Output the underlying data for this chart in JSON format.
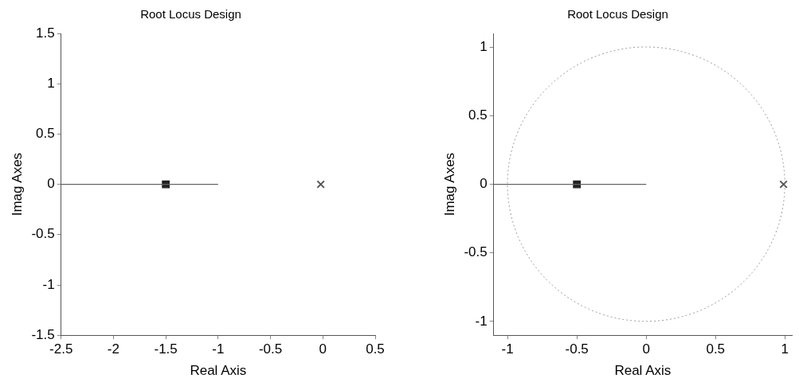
{
  "chart_data": [
    {
      "type": "line",
      "title": "Root Locus Design",
      "xlabel": "Real Axis",
      "ylabel": "Imag Axes",
      "xlim": [
        -2.5,
        0.5
      ],
      "ylim": [
        -1.5,
        1.5
      ],
      "xticks": [
        -2.5,
        -2,
        -1.5,
        -1,
        -0.5,
        0,
        0.5
      ],
      "yticks": [
        -1.5,
        -1,
        -0.5,
        0,
        0.5,
        1,
        1.5
      ],
      "grid": false,
      "legend": false,
      "series": [
        {
          "type": "line",
          "color": "#666666",
          "x": [
            -2.5,
            -1
          ],
          "values": [
            0,
            0
          ]
        },
        {
          "type": "scatter",
          "color": "#222222",
          "x": [
            -1.5
          ],
          "values": [
            0
          ],
          "marker": "square"
        },
        {
          "type": "scatter",
          "color": "#555555",
          "x": [
            -0.02
          ],
          "values": [
            0
          ],
          "marker": "cross"
        }
      ]
    },
    {
      "type": "line",
      "title": "Root Locus Design",
      "xlabel": "Real Axis",
      "ylabel": "Imag Axes",
      "xlim": [
        -1.1,
        1.05
      ],
      "ylim": [
        -1.1,
        1.1
      ],
      "xticks": [
        -1,
        -0.5,
        0,
        0.5,
        1
      ],
      "yticks": [
        -1,
        -0.5,
        0,
        0.5,
        1
      ],
      "grid": false,
      "legend": false,
      "series": [
        {
          "type": "line",
          "color": "#666666",
          "x": [
            -1.1,
            0
          ],
          "values": [
            0,
            0
          ]
        },
        {
          "type": "scatter",
          "color": "#222222",
          "x": [
            -0.5
          ],
          "values": [
            0
          ],
          "marker": "square"
        },
        {
          "type": "scatter",
          "color": "#555555",
          "x": [
            0.99
          ],
          "values": [
            0
          ],
          "marker": "cross"
        }
      ]
    }
  ]
}
